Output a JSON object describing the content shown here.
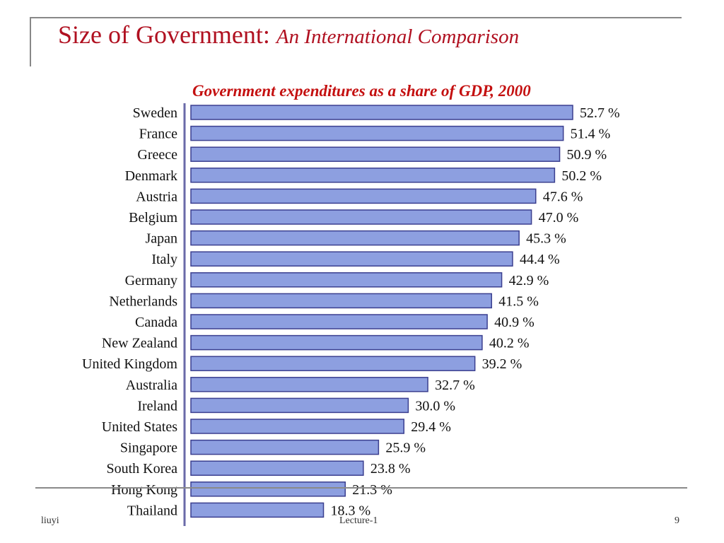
{
  "slide": {
    "title_main": "Size of Government: ",
    "title_sub": "An International Comparison",
    "footer_left": "liuyi",
    "footer_center": "Lecture-1",
    "page_number": "9"
  },
  "colors": {
    "bar_fill": "#8d9fe0",
    "bar_stroke": "#3b3f8f",
    "axis": "#6a6aa8"
  },
  "chart_data": {
    "type": "bar",
    "orientation": "horizontal",
    "title": "Government expenditures as a share of GDP, 2000",
    "categories": [
      "Sweden",
      "France",
      "Greece",
      "Denmark",
      "Austria",
      "Belgium",
      "Japan",
      "Italy",
      "Germany",
      "Netherlands",
      "Canada",
      "New Zealand",
      "United Kingdom",
      "Australia",
      "Ireland",
      "United States",
      "Singapore",
      "South Korea",
      "Hong Kong",
      "Thailand"
    ],
    "values": [
      52.7,
      51.4,
      50.9,
      50.2,
      47.6,
      47.0,
      45.3,
      44.4,
      42.9,
      41.5,
      40.9,
      40.2,
      39.2,
      32.7,
      30.0,
      29.4,
      25.9,
      23.8,
      21.3,
      18.3
    ],
    "value_labels": [
      "52.7 %",
      "51.4 %",
      "50.9 %",
      "50.2 %",
      "47.6 %",
      "47.0 %",
      "45.3 %",
      "44.4 %",
      "42.9 %",
      "41.5 %",
      "40.9 %",
      "40.2 %",
      "39.2 %",
      "32.7 %",
      "30.0 %",
      "29.4 %",
      "25.9 %",
      "23.8 %",
      "21.3 %",
      "18.3 %"
    ],
    "xlim": [
      0,
      52.7
    ],
    "grid": false,
    "legend": "none"
  }
}
